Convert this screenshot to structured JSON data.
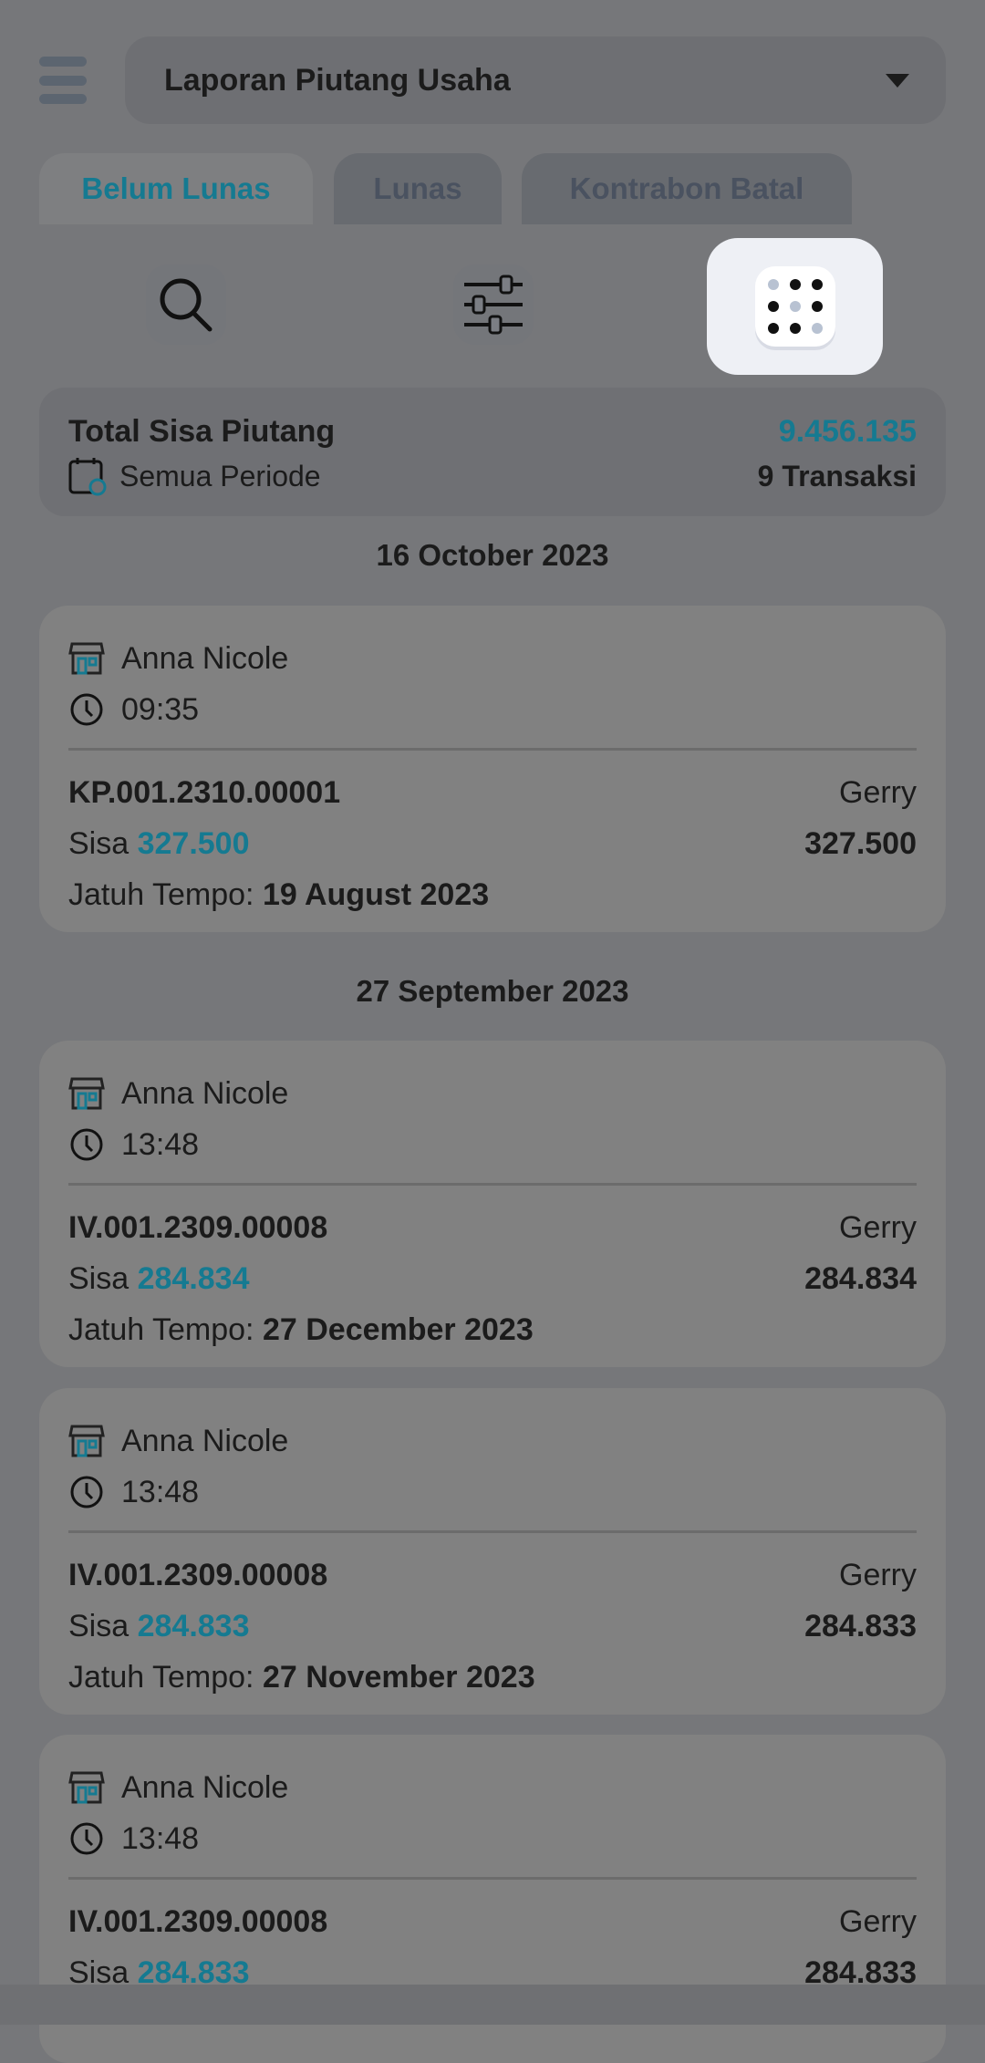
{
  "header": {
    "title": "Laporan Piutang Usaha"
  },
  "tabs": [
    {
      "label": "Belum Lunas",
      "active": true
    },
    {
      "label": "Lunas"
    },
    {
      "label": "Kontrabon Batal"
    }
  ],
  "toolbar": {
    "icons": [
      "search-icon",
      "filter-sliders-icon",
      "grid-dots-icon"
    ]
  },
  "summary": {
    "label": "Total Sisa Piutang",
    "value": "9.456.135",
    "period": "Semua Periode",
    "count": "9 Transaksi"
  },
  "groups": [
    {
      "date": "16 October 2023",
      "items": [
        {
          "customer": "Anna Nicole",
          "time": "09:35",
          "id": "KP.001.2310.00001",
          "sales": "Gerry",
          "sisa_label": "Sisa",
          "sisa": "327.500",
          "total": "327.500",
          "due_label": "Jatuh Tempo:",
          "due": "19 August 2023"
        }
      ]
    },
    {
      "date": "27 September 2023",
      "items": [
        {
          "customer": "Anna Nicole",
          "time": "13:48",
          "id": "IV.001.2309.00008",
          "sales": "Gerry",
          "sisa_label": "Sisa",
          "sisa": "284.834",
          "total": "284.834",
          "due_label": "Jatuh Tempo:",
          "due": "27 December 2023"
        },
        {
          "customer": "Anna Nicole",
          "time": "13:48",
          "id": "IV.001.2309.00008",
          "sales": "Gerry",
          "sisa_label": "Sisa",
          "sisa": "284.833",
          "total": "284.833",
          "due_label": "Jatuh Tempo:",
          "due": "27 November 2023"
        },
        {
          "customer": "Anna Nicole",
          "time": "13:48",
          "id": "IV.001.2309.00008",
          "sales": "Gerry",
          "sisa_label": "Sisa",
          "sisa": "284.833",
          "total": "284.833"
        }
      ]
    }
  ],
  "colors": {
    "accent": "#157a91",
    "highlight": "#eef0f5"
  }
}
